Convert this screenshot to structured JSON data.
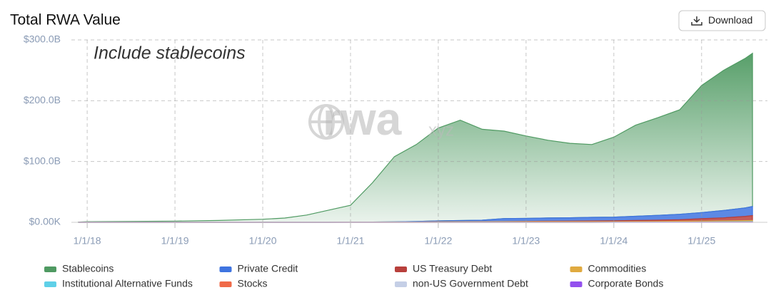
{
  "header": {
    "button": "Download"
  },
  "chart_data": {
    "type": "stacked-area",
    "title": "Total RWA Value",
    "annotation": "Include stablecoins",
    "watermark": "rwa",
    "watermark_suffix": "xyz",
    "x": [
      2017.9,
      2018.0,
      2019.0,
      2019.5,
      2020.0,
      2020.25,
      2020.5,
      2020.75,
      2021.0,
      2021.25,
      2021.5,
      2021.75,
      2022.0,
      2022.25,
      2022.5,
      2022.75,
      2023.0,
      2023.25,
      2023.5,
      2023.75,
      2024.0,
      2024.25,
      2024.5,
      2024.75,
      2025.0,
      2025.25,
      2025.5,
      2025.58
    ],
    "xlim": [
      2017.82,
      2025.75
    ],
    "xticks": [
      {
        "value": 2018,
        "label": "1/1/18"
      },
      {
        "value": 2019,
        "label": "1/1/19"
      },
      {
        "value": 2020,
        "label": "1/1/20"
      },
      {
        "value": 2021,
        "label": "1/1/21"
      },
      {
        "value": 2022,
        "label": "1/1/22"
      },
      {
        "value": 2023,
        "label": "1/1/23"
      },
      {
        "value": 2024,
        "label": "1/1/24"
      },
      {
        "value": 2025,
        "label": "1/1/25"
      }
    ],
    "ylim": [
      0,
      300
    ],
    "yticks": [
      {
        "value": 0,
        "label": "$0.00K"
      },
      {
        "value": 100,
        "label": "$100.0B"
      },
      {
        "value": 200,
        "label": "$200.0B"
      },
      {
        "value": 300,
        "label": "$300.0B"
      }
    ],
    "grid": true,
    "series": [
      {
        "name": "Stablecoins",
        "color": "#4f9a62",
        "values": [
          0.5,
          1,
          2,
          3,
          5,
          7,
          12,
          20,
          27.7,
          64.5,
          107.2,
          126.7,
          152.7,
          165.1,
          149.5,
          143.8,
          135.5,
          127.8,
          122.5,
          119.8,
          131.4,
          150,
          160.5,
          171.8,
          209,
          230.6,
          246.2,
          251.9
        ]
      },
      {
        "name": "Private Credit",
        "color": "#3f74e0",
        "values": [
          0,
          0,
          0,
          0,
          0,
          0,
          0,
          0,
          0.2,
          0.3,
          0.5,
          0.8,
          1.5,
          2,
          2.5,
          5,
          5,
          5.5,
          5.5,
          6,
          6,
          7,
          8,
          9,
          10,
          12,
          14,
          15
        ]
      },
      {
        "name": "US Treasury Debt",
        "color": "#b8403c",
        "values": [
          0,
          0,
          0,
          0,
          0,
          0,
          0,
          0,
          0,
          0,
          0,
          0,
          0,
          0,
          0.1,
          0.2,
          0.5,
          0.7,
          1,
          1.2,
          1.5,
          1.8,
          2,
          2.5,
          4,
          5,
          7,
          8
        ]
      },
      {
        "name": "Commodities",
        "color": "#e0aa40",
        "values": [
          0,
          0,
          0,
          0,
          0,
          0,
          0,
          0,
          0.1,
          0.2,
          0.3,
          0.5,
          0.8,
          0.9,
          0.9,
          1,
          1,
          1,
          1,
          1,
          1,
          1.1,
          1.2,
          1.3,
          1.4,
          1.5,
          1.7,
          1.8
        ]
      },
      {
        "name": "Institutional Alternative Funds",
        "color": "#5fd0e8",
        "values": [
          0,
          0,
          0,
          0,
          0,
          0,
          0,
          0,
          0,
          0,
          0,
          0,
          0,
          0,
          0,
          0,
          0,
          0,
          0,
          0,
          0,
          0,
          0.1,
          0.2,
          0.3,
          0.5,
          0.6,
          0.7
        ]
      },
      {
        "name": "Stocks",
        "color": "#f06a48",
        "values": [
          0,
          0,
          0,
          0,
          0,
          0,
          0,
          0,
          0,
          0,
          0,
          0,
          0,
          0,
          0,
          0,
          0,
          0,
          0,
          0,
          0,
          0,
          0,
          0,
          0.1,
          0.2,
          0.3,
          0.4
        ]
      },
      {
        "name": "non-US Government Debt",
        "color": "#c5cfe6",
        "values": [
          0,
          0,
          0,
          0,
          0,
          0,
          0,
          0,
          0,
          0,
          0,
          0,
          0,
          0,
          0,
          0,
          0,
          0,
          0,
          0,
          0.1,
          0.1,
          0.1,
          0.1,
          0.1,
          0.1,
          0.1,
          0.1
        ]
      },
      {
        "name": "Corporate Bonds",
        "color": "#9350ee",
        "values": [
          0,
          0,
          0,
          0,
          0,
          0,
          0,
          0,
          0,
          0,
          0,
          0,
          0,
          0,
          0,
          0,
          0,
          0,
          0,
          0,
          0,
          0,
          0.1,
          0.1,
          0.1,
          0.1,
          0.1,
          0.1
        ]
      }
    ]
  }
}
